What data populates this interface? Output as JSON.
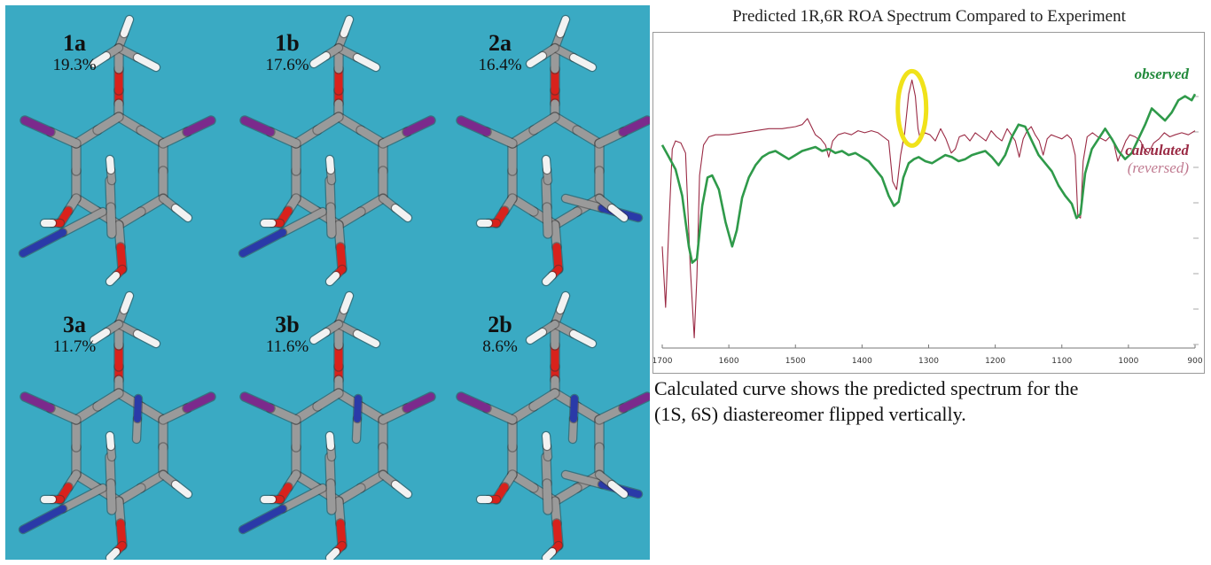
{
  "conformers": [
    {
      "name": "1a",
      "percent": "19.3%"
    },
    {
      "name": "1b",
      "percent": "17.6%"
    },
    {
      "name": "2a",
      "percent": "16.4%"
    },
    {
      "name": "3a",
      "percent": "11.7%"
    },
    {
      "name": "3b",
      "percent": "11.6%"
    },
    {
      "name": "2b",
      "percent": "8.6%"
    }
  ],
  "colors": {
    "panel_background": "#3aaac3",
    "carbon": "#9a9a9a",
    "hydrogen": "#f2f2f2",
    "oxygen": "#d8221c",
    "iodine": "#7b2a8c",
    "nitrogen": "#2a3aa8",
    "observed": "#2f9a4a",
    "calculated": "#9a2a44",
    "highlight": "#f0e21a"
  },
  "chart": {
    "title": "Predicted 1R,6R ROA Spectrum Compared to Experiment",
    "legend": {
      "observed": "observed",
      "calculated": "calculated",
      "reversed": "(reversed)"
    },
    "highlight_at": 1325
  },
  "chart_data": {
    "type": "line",
    "title": "Predicted 1R,6R ROA Spectrum Compared to Experiment",
    "xlabel": "",
    "ylabel": "",
    "xlim": [
      1700,
      900
    ],
    "ylim": [
      -10,
      5
    ],
    "x_ticks": [
      "1700",
      "1600",
      "1500",
      "1400",
      "1300",
      "1200",
      "1100",
      "1000",
      "900"
    ],
    "grid": false,
    "series": [
      {
        "name": "observed",
        "x": [
          1700,
          1690,
          1680,
          1670,
          1660,
          1655,
          1648,
          1640,
          1632,
          1625,
          1615,
          1605,
          1595,
          1588,
          1580,
          1570,
          1560,
          1550,
          1540,
          1530,
          1520,
          1510,
          1500,
          1490,
          1480,
          1470,
          1460,
          1450,
          1440,
          1430,
          1420,
          1410,
          1400,
          1390,
          1380,
          1370,
          1360,
          1352,
          1345,
          1338,
          1330,
          1322,
          1315,
          1305,
          1295,
          1285,
          1275,
          1265,
          1255,
          1245,
          1235,
          1225,
          1215,
          1205,
          1195,
          1185,
          1175,
          1165,
          1155,
          1145,
          1135,
          1125,
          1115,
          1105,
          1095,
          1085,
          1078,
          1072,
          1065,
          1055,
          1045,
          1035,
          1025,
          1015,
          1005,
          995,
          985,
          975,
          965,
          955,
          945,
          935,
          925,
          915,
          905,
          900
        ],
        "y": [
          0.0,
          -0.6,
          -1.2,
          -2.5,
          -5.0,
          -5.8,
          -5.6,
          -3.0,
          -1.6,
          -1.5,
          -2.2,
          -3.8,
          -5.0,
          -4.2,
          -2.6,
          -1.6,
          -1.0,
          -0.6,
          -0.4,
          -0.3,
          -0.5,
          -0.7,
          -0.5,
          -0.3,
          -0.2,
          -0.1,
          -0.3,
          -0.2,
          -0.4,
          -0.3,
          -0.5,
          -0.4,
          -0.6,
          -0.8,
          -1.2,
          -1.6,
          -2.5,
          -3.0,
          -2.8,
          -1.6,
          -0.9,
          -0.7,
          -0.6,
          -0.8,
          -0.9,
          -0.7,
          -0.5,
          -0.6,
          -0.8,
          -0.7,
          -0.5,
          -0.4,
          -0.3,
          -0.6,
          -1.0,
          -0.5,
          0.4,
          1.0,
          0.9,
          0.2,
          -0.5,
          -0.9,
          -1.3,
          -2.0,
          -2.5,
          -2.9,
          -3.6,
          -3.4,
          -1.4,
          -0.2,
          0.3,
          0.8,
          0.3,
          -0.3,
          -0.7,
          -0.4,
          0.3,
          1.0,
          1.8,
          1.5,
          1.2,
          1.6,
          2.2,
          2.4,
          2.2,
          2.5
        ]
      },
      {
        "name": "calculated",
        "x": [
          1700,
          1695,
          1690,
          1685,
          1680,
          1672,
          1665,
          1658,
          1652,
          1648,
          1644,
          1638,
          1630,
          1620,
          1600,
          1580,
          1560,
          1540,
          1520,
          1500,
          1490,
          1482,
          1476,
          1470,
          1462,
          1455,
          1450,
          1444,
          1436,
          1426,
          1416,
          1406,
          1396,
          1386,
          1376,
          1368,
          1360,
          1354,
          1348,
          1342,
          1336,
          1330,
          1325,
          1320,
          1316,
          1312,
          1306,
          1298,
          1290,
          1282,
          1274,
          1266,
          1260,
          1254,
          1246,
          1238,
          1230,
          1222,
          1214,
          1206,
          1198,
          1190,
          1182,
          1176,
          1170,
          1164,
          1158,
          1152,
          1146,
          1140,
          1134,
          1128,
          1122,
          1116,
          1108,
          1100,
          1092,
          1086,
          1080,
          1076,
          1072,
          1068,
          1062,
          1054,
          1046,
          1040,
          1034,
          1028,
          1022,
          1016,
          1010,
          1004,
          998,
          990,
          982,
          976,
          970,
          962,
          954,
          946,
          938,
          930,
          920,
          910,
          900
        ],
        "y": [
          -5.0,
          -8.0,
          -4.0,
          -0.2,
          0.2,
          0.1,
          -0.4,
          -6.0,
          -9.5,
          -6.5,
          -1.5,
          0.0,
          0.4,
          0.5,
          0.5,
          0.6,
          0.7,
          0.8,
          0.8,
          0.9,
          1.0,
          1.3,
          0.9,
          0.5,
          0.3,
          0.0,
          -0.6,
          0.2,
          0.5,
          0.6,
          0.5,
          0.7,
          0.6,
          0.7,
          0.6,
          0.4,
          0.2,
          -1.8,
          -2.2,
          -0.5,
          0.6,
          2.5,
          3.2,
          2.4,
          0.8,
          0.2,
          0.6,
          0.5,
          0.2,
          0.8,
          0.3,
          -0.4,
          -0.2,
          0.4,
          0.5,
          0.2,
          0.6,
          0.4,
          0.2,
          0.7,
          0.4,
          0.2,
          0.8,
          0.5,
          0.2,
          -0.6,
          0.3,
          0.7,
          0.9,
          0.5,
          0.2,
          -0.5,
          0.3,
          0.5,
          0.4,
          0.3,
          0.5,
          0.3,
          -0.5,
          -3.5,
          -3.6,
          -0.8,
          0.4,
          0.6,
          0.4,
          0.3,
          0.2,
          0.4,
          0.1,
          -0.8,
          -0.3,
          0.2,
          0.5,
          0.4,
          0.2,
          -0.2,
          -0.4,
          0.1,
          0.3,
          0.6,
          0.4,
          0.5,
          0.6,
          0.5,
          0.7
        ]
      }
    ]
  },
  "caption": {
    "line1": "Calculated curve shows the predicted spectrum for the",
    "line2": "(1S, 6S) diastereomer flipped vertically."
  }
}
